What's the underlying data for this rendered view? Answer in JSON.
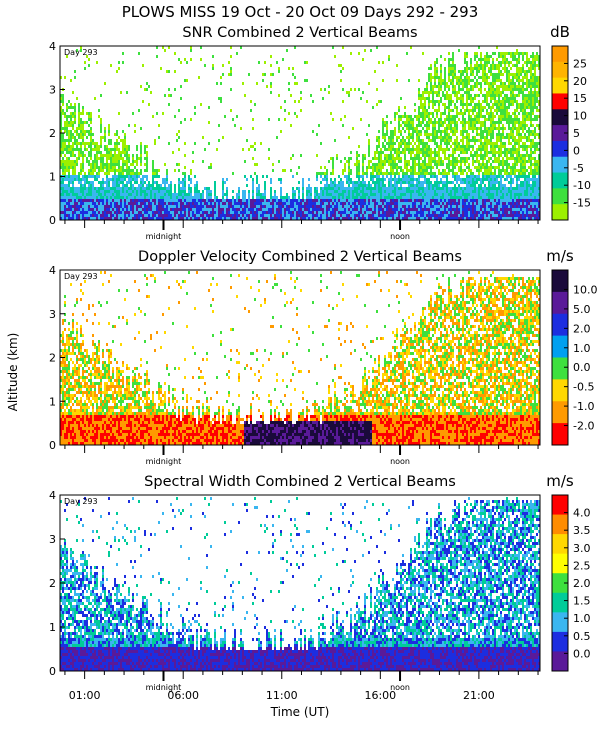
{
  "figure": {
    "title": "PLOWS MISS  19 Oct - 20 Oct 09 Days 292 - 293",
    "ylabel": "Altitude (km)",
    "xlabel": "Time (UT)",
    "x_ticks": [
      "01:00",
      "06:00",
      "11:00",
      "16:00",
      "21:00"
    ],
    "markers": {
      "midnight": "midnight",
      "noon": "noon",
      "day": "Day 293"
    }
  },
  "chart_data": [
    {
      "type": "heatmap",
      "title": "SNR Combined 2 Vertical Beams",
      "unit": "dB",
      "ylim": [
        0,
        4
      ],
      "y_ticks": [
        "0",
        "1",
        "2",
        "3",
        "4"
      ],
      "colorbar": {
        "labels": [
          "25",
          "20",
          "15",
          "10",
          "5",
          "0",
          "-5",
          "-10",
          "-15"
        ],
        "colors": [
          "#ff9a00",
          "#ffb400",
          "#ffd800",
          "#ff0000",
          "#1a0a3a",
          "#5a1a99",
          "#1c2ee0",
          "#3ab6f0",
          "#00cc99",
          "#3ee03e",
          "#9cf000"
        ]
      }
    },
    {
      "type": "heatmap",
      "title": "Doppler Velocity Combined 2 Vertical Beams",
      "unit": "m/s",
      "ylim": [
        0,
        4
      ],
      "y_ticks": [
        "0",
        "1",
        "2",
        "3",
        "4"
      ],
      "colorbar": {
        "labels": [
          "10.0",
          "5.0",
          "2.0",
          "1.0",
          "0.0",
          "-0.5",
          "-1.0",
          "-2.0"
        ],
        "colors": [
          "#1a0a3a",
          "#5a1a99",
          "#1c2ee0",
          "#00a0f0",
          "#3ee03e",
          "#ffd800",
          "#ff9a00",
          "#ff0000"
        ]
      }
    },
    {
      "type": "heatmap",
      "title": "Spectral Width Combined 2 Vertical Beams",
      "unit": "m/s",
      "ylim": [
        0,
        4
      ],
      "y_ticks": [
        "0",
        "1",
        "2",
        "3",
        "4"
      ],
      "colorbar": {
        "labels": [
          "4.0",
          "3.5",
          "3.0",
          "2.5",
          "2.0",
          "1.5",
          "1.0",
          "0.5",
          "0.0"
        ],
        "colors": [
          "#ff0000",
          "#ff8c00",
          "#ffd800",
          "#ffff00",
          "#3ee03e",
          "#00cc99",
          "#3ab6f0",
          "#1c2ee0",
          "#5a1a99"
        ]
      }
    }
  ]
}
